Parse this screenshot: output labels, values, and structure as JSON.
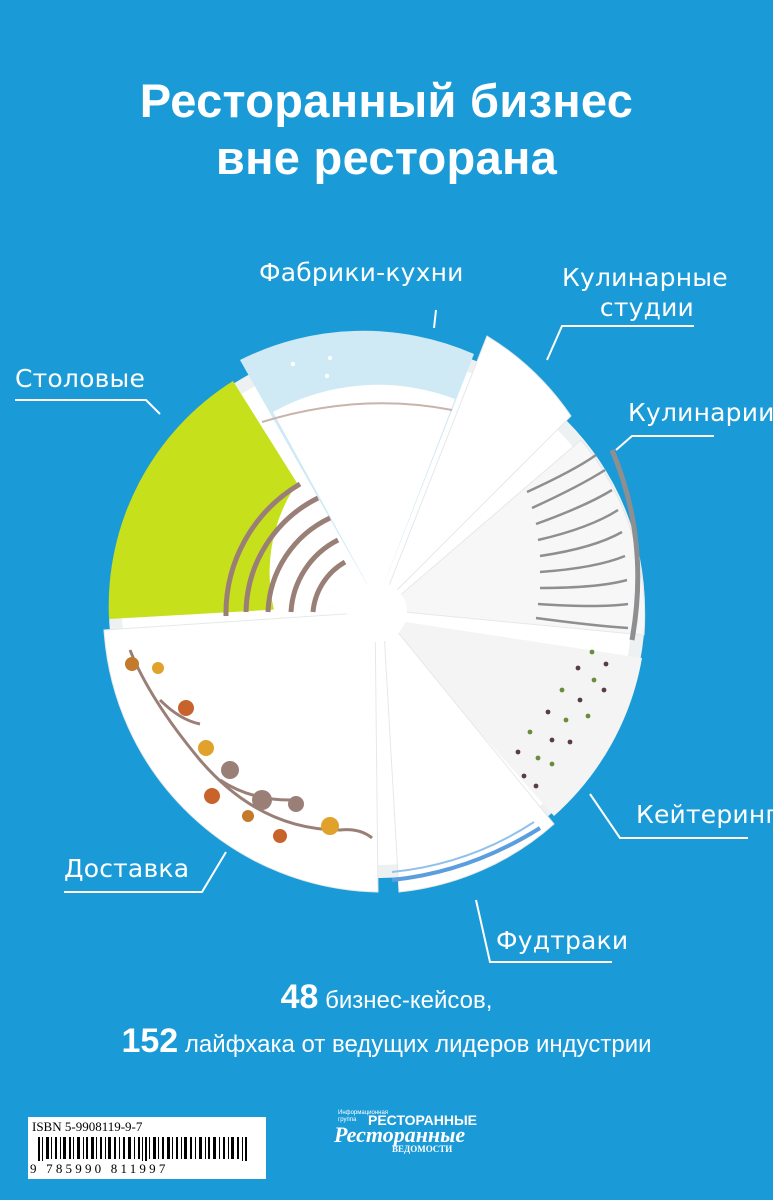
{
  "title": {
    "line1": "Ресторанный бизнес",
    "line2": "вне ресторана"
  },
  "segments": [
    {
      "label_lines": [
        "Фабрики-кухни"
      ],
      "color": "#cfe9f5"
    },
    {
      "label_lines": [
        "Кулинарные",
        "студии"
      ],
      "color": "#ffffff"
    },
    {
      "label_lines": [
        "Кулинарии"
      ],
      "color": "#f7f7f7"
    },
    {
      "label_lines": [
        "Кейтеринг"
      ],
      "color": "#f4f4f4"
    },
    {
      "label_lines": [
        "Фудтраки"
      ],
      "color": "#ffffff"
    },
    {
      "label_lines": [
        "Доставка"
      ],
      "color": "#ffffff"
    },
    {
      "label_lines": [
        "Столовые"
      ],
      "color": "#c6e01c"
    }
  ],
  "stats": {
    "line1_number": "48",
    "line1_text": "бизнес-кейсов,",
    "line2_number": "152",
    "line2_text": "лайфхака от ведущих лидеров индустрии"
  },
  "isbn": {
    "text": "ISBN 5-9908119-9-7",
    "digits": "9 785990 811997"
  },
  "publisher": {
    "small_line1": "Информационная",
    "small_line2": "группа",
    "name_part1": "РЕСТОРАННЫЕ",
    "name_part2": "Ресторанные",
    "name_part3": "ВЕДОМОСТИ"
  },
  "colors": {
    "background": "#1a9bd7",
    "plate": "#ffffff",
    "plate_rim": "#eef0f1",
    "accent_lime": "#c6e01c",
    "accent_lightblue": "#cfe9f5",
    "brown": "#9a7f77"
  }
}
